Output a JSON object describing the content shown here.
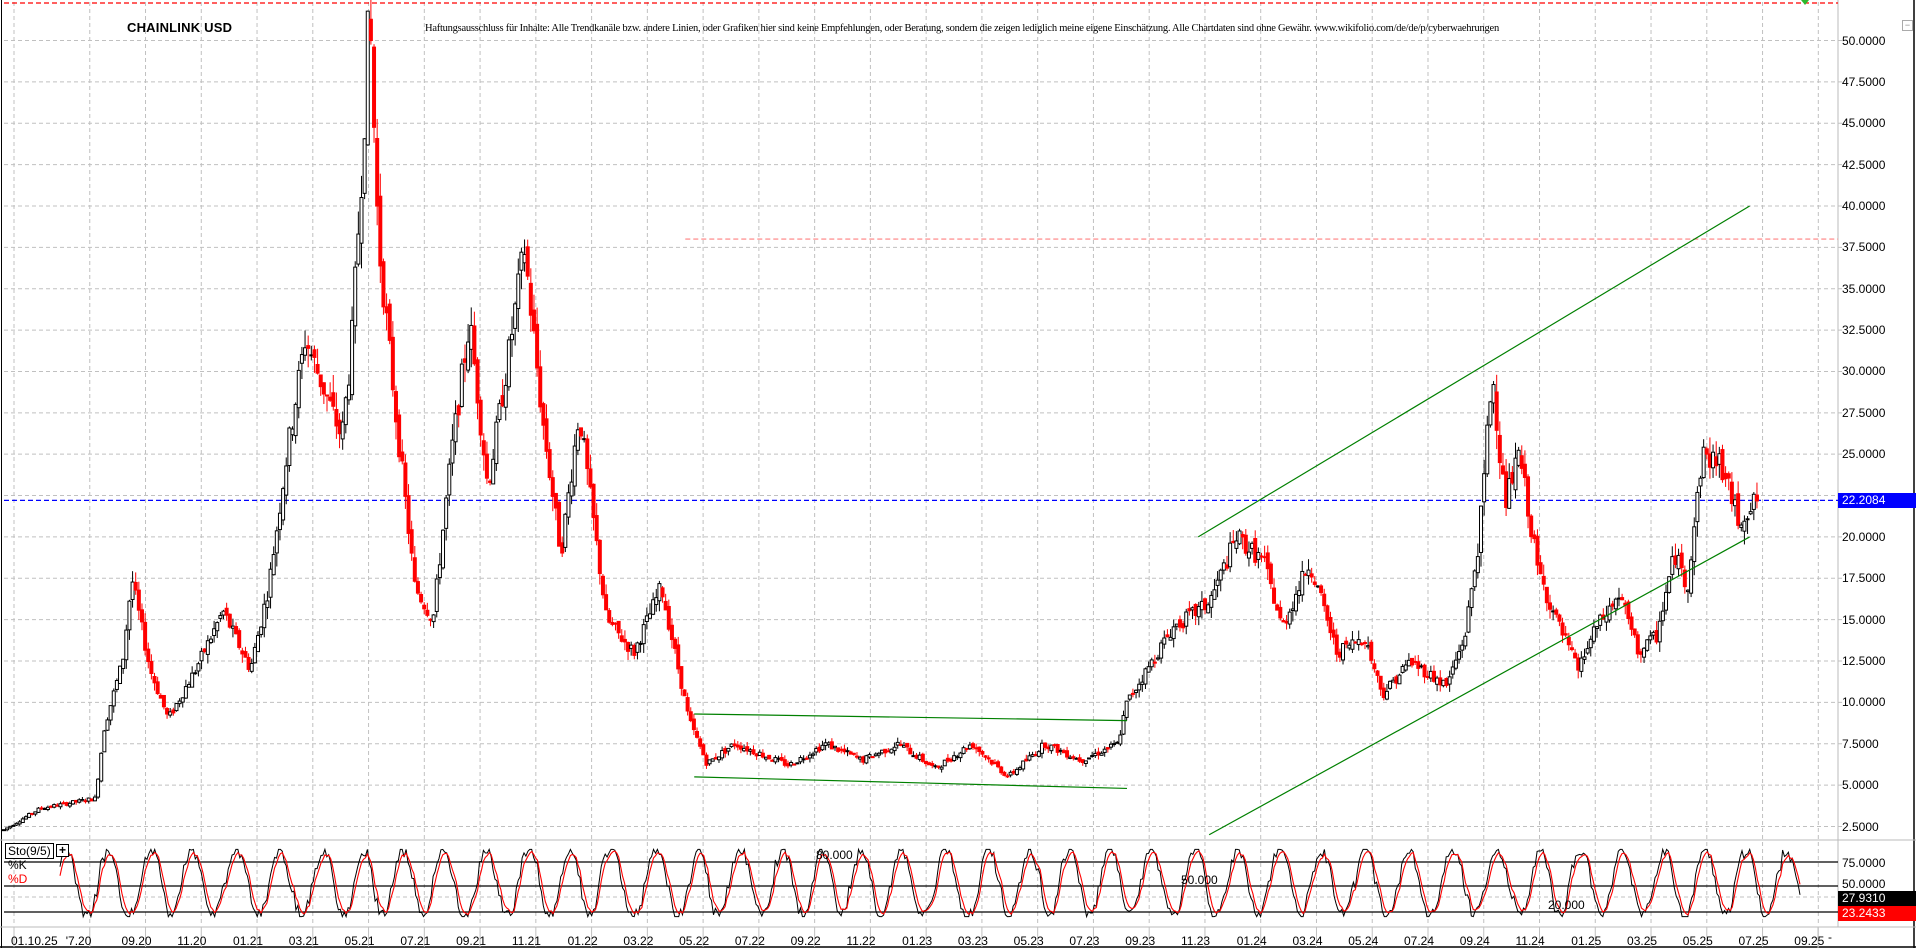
{
  "chart_data": {
    "type": "candlestick",
    "title": "CHAINLINK USD",
    "disclaimer": "Haftungsausschluss für Inhalte: Alle Trendkanäle bzw. andere Linien, oder Grafiken hier sind keine Empfehlungen, oder Beratung, sondern die zeigen lediglich meine eigene Einschätzung. Alle Chartdaten sind ohne Gewähr.  www.wikifolio.com/de/de/p/cyberwaehrungen",
    "xlabel": "",
    "ylabel": "",
    "ylim": [
      0.9,
      52.5
    ],
    "y_ticks": [
      "50.0000",
      "47.5000",
      "45.0000",
      "42.5000",
      "40.0000",
      "37.5000",
      "35.0000",
      "32.5000",
      "30.0000",
      "27.5000",
      "25.0000",
      "20.0000",
      "17.5000",
      "15.0000",
      "12.5000",
      "10.0000",
      "7.5000",
      "5.0000",
      "2.5000"
    ],
    "x_ticks": [
      "01.10.25",
      "07.20",
      "09.20",
      "11.20",
      "01.21",
      "03.21",
      "05.21",
      "07.21",
      "09.21",
      "11.21",
      "01.22",
      "03.22",
      "05.22",
      "07.22",
      "09.22",
      "11.22",
      "01.23",
      "03.23",
      "05.23",
      "07.23",
      "09.23",
      "11.23",
      "01.24",
      "03.24",
      "05.24",
      "07.24",
      "09.24",
      "11.24",
      "01.25",
      "03.25",
      "05.25",
      "07.25",
      "09.25"
    ],
    "x_tick_display": [
      "01.10.25",
      "'7.20",
      "09.20",
      "11.20",
      "01.21",
      "03.21",
      "05.21",
      "07.21",
      "09.21",
      "11.21",
      "01.22",
      "03.22",
      "05.22",
      "07.22",
      "09.22",
      "11.22",
      "01.23",
      "03.23",
      "05.23",
      "07.23",
      "09.23",
      "11.23",
      "01.24",
      "03.24",
      "05.24",
      "07.24",
      "09.24",
      "11.24",
      "01.25",
      "03.25",
      "05.25",
      "07.25",
      "09.25"
    ],
    "current_price": "22.2084",
    "current_price_color": "#0000ff",
    "price_path_anchors": [
      [
        0,
        2.3
      ],
      [
        0.02,
        3.6
      ],
      [
        0.05,
        4.2
      ],
      [
        0.055,
        8.5
      ],
      [
        0.065,
        12.5
      ],
      [
        0.07,
        17.5
      ],
      [
        0.08,
        12.0
      ],
      [
        0.09,
        9.0
      ],
      [
        0.105,
        12.0
      ],
      [
        0.12,
        15.5
      ],
      [
        0.135,
        12.0
      ],
      [
        0.145,
        17.0
      ],
      [
        0.155,
        25.0
      ],
      [
        0.165,
        32.0
      ],
      [
        0.175,
        29.0
      ],
      [
        0.185,
        26.0
      ],
      [
        0.19,
        31.0
      ],
      [
        0.197,
        44.0
      ],
      [
        0.2,
        52.5
      ],
      [
        0.205,
        38.0
      ],
      [
        0.215,
        27.0
      ],
      [
        0.225,
        17.0
      ],
      [
        0.235,
        15.0
      ],
      [
        0.245,
        25.0
      ],
      [
        0.255,
        33.0
      ],
      [
        0.265,
        23.0
      ],
      [
        0.275,
        30.0
      ],
      [
        0.285,
        37.5
      ],
      [
        0.295,
        27.0
      ],
      [
        0.305,
        19.0
      ],
      [
        0.315,
        27.5
      ],
      [
        0.33,
        15.0
      ],
      [
        0.345,
        13.0
      ],
      [
        0.36,
        17.0
      ],
      [
        0.375,
        9.0
      ],
      [
        0.385,
        6.3
      ],
      [
        0.4,
        7.5
      ],
      [
        0.43,
        6.2
      ],
      [
        0.45,
        7.5
      ],
      [
        0.47,
        6.5
      ],
      [
        0.49,
        7.5
      ],
      [
        0.51,
        6.0
      ],
      [
        0.53,
        7.5
      ],
      [
        0.55,
        5.5
      ],
      [
        0.57,
        7.5
      ],
      [
        0.59,
        6.5
      ],
      [
        0.61,
        7.5
      ],
      [
        0.615,
        10.0
      ],
      [
        0.64,
        14.5
      ],
      [
        0.66,
        16.0
      ],
      [
        0.675,
        20.0
      ],
      [
        0.69,
        18.5
      ],
      [
        0.7,
        14.5
      ],
      [
        0.715,
        18.5
      ],
      [
        0.73,
        13.0
      ],
      [
        0.745,
        14.0
      ],
      [
        0.755,
        10.5
      ],
      [
        0.77,
        12.5
      ],
      [
        0.79,
        11.0
      ],
      [
        0.8,
        14.0
      ],
      [
        0.808,
        20.0
      ],
      [
        0.815,
        30.0
      ],
      [
        0.822,
        22.0
      ],
      [
        0.83,
        25.0
      ],
      [
        0.84,
        18.0
      ],
      [
        0.85,
        15.0
      ],
      [
        0.862,
        12.0
      ],
      [
        0.872,
        14.5
      ],
      [
        0.885,
        16.5
      ],
      [
        0.895,
        13.0
      ],
      [
        0.905,
        14.0
      ],
      [
        0.915,
        19.0
      ],
      [
        0.922,
        17.0
      ],
      [
        0.93,
        25.0
      ],
      [
        0.94,
        24.5
      ],
      [
        0.95,
        21.0
      ],
      [
        0.96,
        22.2
      ]
    ],
    "trendlines": [
      {
        "name": "sideways-channel-top",
        "color": "#008000",
        "from": [
          0.378,
          9.3
        ],
        "to": [
          0.615,
          8.9
        ]
      },
      {
        "name": "sideways-channel-bottom",
        "color": "#008000",
        "from": [
          0.378,
          5.5
        ],
        "to": [
          0.615,
          4.8
        ]
      },
      {
        "name": "ascending-channel-top",
        "color": "#008000",
        "from": [
          0.654,
          20.0
        ],
        "to": [
          0.956,
          40.0
        ]
      },
      {
        "name": "ascending-channel-bottom",
        "color": "#008000",
        "from": [
          0.66,
          2.0
        ],
        "to": [
          0.956,
          20.0
        ]
      }
    ],
    "horizontal_lines": [
      {
        "name": "all-time-high",
        "value": 52.3,
        "color": "#ff0000",
        "style": "dashed"
      },
      {
        "name": "resistance",
        "value": 38.0,
        "color": "#ff7f7f",
        "style": "dashed",
        "from": 0.28
      },
      {
        "name": "current-price-line",
        "value": 22.2084,
        "color": "#0000ff",
        "style": "dashed"
      }
    ],
    "indicator": {
      "name": "Sto(9/5)",
      "k_label": "%K",
      "d_label": "%D",
      "k_color": "#000000",
      "d_color": "#ff0000",
      "levels": [
        80,
        50,
        20
      ],
      "level_labels": [
        "80.000",
        "50.000",
        "20.000"
      ],
      "y_ticks": [
        "75.0000",
        "50.0000"
      ],
      "k_value": "27.9310",
      "d_value": "23.2433"
    },
    "grid": true,
    "up_color": "#000000",
    "down_color": "#ff0000"
  },
  "ui": {
    "collapse_symbol": "−",
    "plus_symbol": "+",
    "minus_symbol": "-"
  }
}
